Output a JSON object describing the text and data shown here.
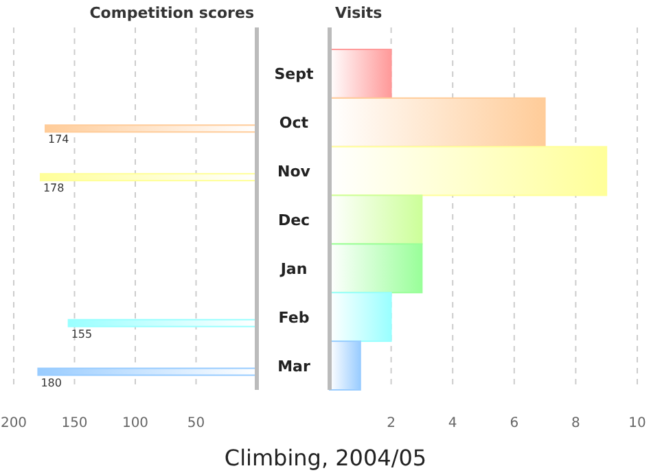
{
  "chart_data": [
    {
      "type": "bar",
      "orientation": "horizontal",
      "title": "Competition scores",
      "categories": [
        null,
        null,
        null,
        null,
        null,
        null,
        null
      ],
      "values": [
        null,
        174,
        178,
        null,
        null,
        155,
        180
      ],
      "colors": [
        "#ff9999",
        "#ffcc99",
        "#ffff99",
        "#ccff99",
        "#99ff99",
        "#99ffff",
        "#99ccff"
      ],
      "xlim": [
        200,
        0
      ],
      "xticks": [
        200,
        150,
        100,
        50
      ],
      "grid": "x",
      "data_labels": true,
      "tick_labels": "x",
      "annotations": [
        "Climbing, 2004/05"
      ]
    },
    {
      "type": "bar",
      "orientation": "horizontal",
      "title": "Visits",
      "categories": [
        "Sept",
        "Oct",
        "Nov",
        "Dec",
        "Jan",
        "Feb",
        "Mar"
      ],
      "values": [
        2,
        7,
        9,
        3,
        3,
        2,
        1
      ],
      "colors": [
        "#ff9999",
        "#ffcc99",
        "#ffff99",
        "#ccff99",
        "#99ff99",
        "#99ffff",
        "#99ccff"
      ],
      "xlim": [
        0,
        10
      ],
      "xticks": [
        2,
        4,
        6,
        8,
        10
      ],
      "grid": "x"
    }
  ]
}
